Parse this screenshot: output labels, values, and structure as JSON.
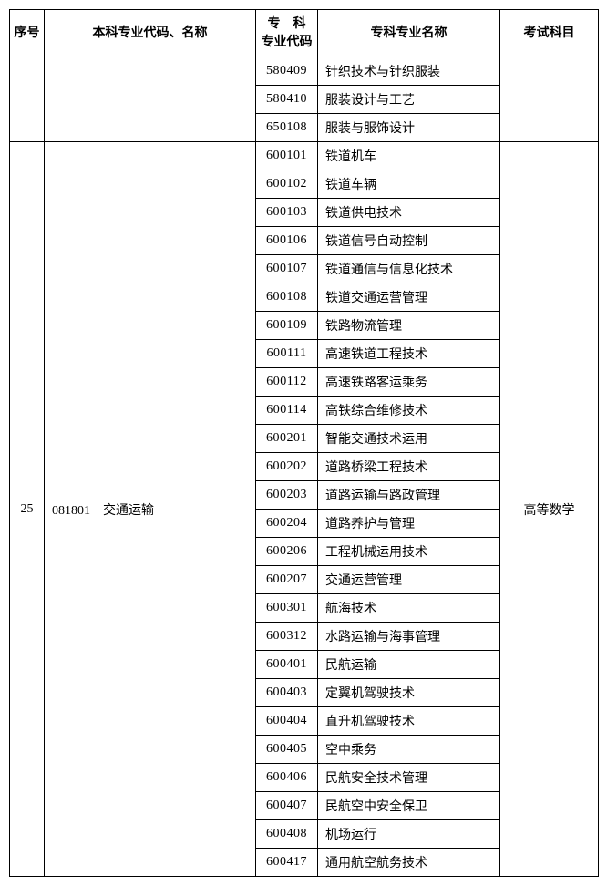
{
  "columns": {
    "col1_width": 38,
    "col2_width": 232,
    "col3_width": 68,
    "col4_width": 200,
    "col5_width": 108
  },
  "headers": {
    "h1": "序号",
    "h2": "本科专业代码、名称",
    "h3": "专　科\n专业代码",
    "h4": "专科专业名称",
    "h5": "考试科目"
  },
  "group1": {
    "rows": [
      {
        "code": "580409",
        "name": "针织技术与针织服装"
      },
      {
        "code": "580410",
        "name": "服装设计与工艺"
      },
      {
        "code": "650108",
        "name": "服装与服饰设计"
      }
    ]
  },
  "group2": {
    "xuhao": "25",
    "major_code": "081801",
    "major_name": "交通运输",
    "exam": "高等数学",
    "rows": [
      {
        "code": "600101",
        "name": "铁道机车"
      },
      {
        "code": "600102",
        "name": "铁道车辆"
      },
      {
        "code": "600103",
        "name": "铁道供电技术"
      },
      {
        "code": "600106",
        "name": "铁道信号自动控制"
      },
      {
        "code": "600107",
        "name": "铁道通信与信息化技术"
      },
      {
        "code": "600108",
        "name": "铁道交通运营管理"
      },
      {
        "code": "600109",
        "name": "铁路物流管理"
      },
      {
        "code": "600111",
        "name": "高速铁道工程技术"
      },
      {
        "code": "600112",
        "name": "高速铁路客运乘务"
      },
      {
        "code": "600114",
        "name": "高铁综合维修技术"
      },
      {
        "code": "600201",
        "name": "智能交通技术运用"
      },
      {
        "code": "600202",
        "name": "道路桥梁工程技术"
      },
      {
        "code": "600203",
        "name": "道路运输与路政管理"
      },
      {
        "code": "600204",
        "name": "道路养护与管理"
      },
      {
        "code": "600206",
        "name": "工程机械运用技术"
      },
      {
        "code": "600207",
        "name": "交通运营管理"
      },
      {
        "code": "600301",
        "name": "航海技术"
      },
      {
        "code": "600312",
        "name": "水路运输与海事管理"
      },
      {
        "code": "600401",
        "name": "民航运输"
      },
      {
        "code": "600403",
        "name": "定翼机驾驶技术"
      },
      {
        "code": "600404",
        "name": "直升机驾驶技术"
      },
      {
        "code": "600405",
        "name": "空中乘务"
      },
      {
        "code": "600406",
        "name": "民航安全技术管理"
      },
      {
        "code": "600407",
        "name": "民航空中安全保卫"
      },
      {
        "code": "600408",
        "name": "机场运行"
      },
      {
        "code": "600417",
        "name": "通用航空航务技术"
      }
    ]
  }
}
